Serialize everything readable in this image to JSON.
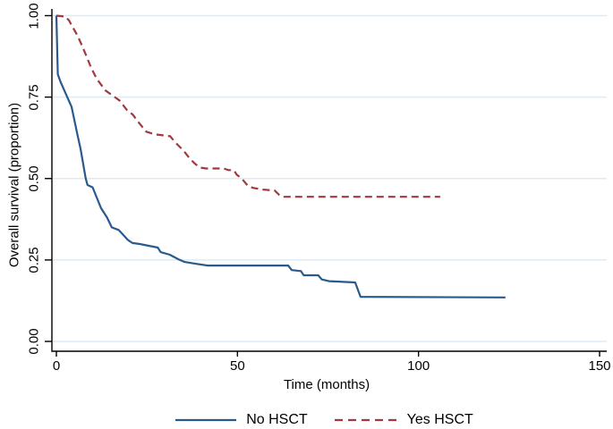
{
  "chart_data": {
    "type": "line",
    "title": "",
    "xlabel": "Time (months)",
    "ylabel": "Overall survival (proportion)",
    "xlim": [
      0,
      150
    ],
    "ylim": [
      0,
      1
    ],
    "xticks": [
      {
        "value": 0,
        "label": "0"
      },
      {
        "value": 50,
        "label": "50"
      },
      {
        "value": 100,
        "label": "100"
      },
      {
        "value": 150,
        "label": "150"
      }
    ],
    "yticks": [
      {
        "value": 0,
        "label": "0.00"
      },
      {
        "value": 0.25,
        "label": "0.25"
      },
      {
        "value": 0.5,
        "label": "0.50"
      },
      {
        "value": 0.75,
        "label": "0.75"
      },
      {
        "value": 1,
        "label": "1.00"
      }
    ],
    "grid": "horizontal-only",
    "legend_position": "bottom-center",
    "series": [
      {
        "name": "No HSCT",
        "color": "#2a5a8c",
        "dash": "solid",
        "points": [
          [
            0,
            1.0
          ],
          [
            0.4,
            0.82
          ],
          [
            1.2,
            0.795
          ],
          [
            4.2,
            0.72
          ],
          [
            5.9,
            0.63
          ],
          [
            6.7,
            0.59
          ],
          [
            8.1,
            0.5
          ],
          [
            8.6,
            0.48
          ],
          [
            10,
            0.473
          ],
          [
            12.3,
            0.41
          ],
          [
            14,
            0.38
          ],
          [
            15.3,
            0.35
          ],
          [
            17.2,
            0.342
          ],
          [
            19.7,
            0.312
          ],
          [
            21,
            0.302
          ],
          [
            23,
            0.299
          ],
          [
            28,
            0.288
          ],
          [
            28.8,
            0.274
          ],
          [
            31.3,
            0.266
          ],
          [
            33.7,
            0.252
          ],
          [
            35.4,
            0.244
          ],
          [
            38.6,
            0.238
          ],
          [
            41.8,
            0.233
          ],
          [
            64,
            0.233
          ],
          [
            65,
            0.219
          ],
          [
            67.5,
            0.216
          ],
          [
            68.3,
            0.203
          ],
          [
            72.3,
            0.203
          ],
          [
            73.3,
            0.19
          ],
          [
            75.3,
            0.185
          ],
          [
            82.5,
            0.181
          ],
          [
            84,
            0.137
          ],
          [
            124,
            0.135
          ]
        ]
      },
      {
        "name": "Yes HSCT",
        "color": "#a13a3e",
        "dash": "dashed",
        "points": [
          [
            0,
            1.0
          ],
          [
            2.5,
            0.997
          ],
          [
            3.5,
            0.985
          ],
          [
            5.9,
            0.937
          ],
          [
            7.2,
            0.905
          ],
          [
            8.4,
            0.873
          ],
          [
            9.6,
            0.84
          ],
          [
            11.2,
            0.805
          ],
          [
            13.6,
            0.77
          ],
          [
            17.4,
            0.74
          ],
          [
            19.5,
            0.71
          ],
          [
            21.1,
            0.696
          ],
          [
            22.8,
            0.671
          ],
          [
            24.8,
            0.644
          ],
          [
            27,
            0.636
          ],
          [
            31.4,
            0.63
          ],
          [
            33.1,
            0.608
          ],
          [
            35.1,
            0.586
          ],
          [
            36.8,
            0.562
          ],
          [
            38.3,
            0.545
          ],
          [
            39.6,
            0.534
          ],
          [
            41.3,
            0.531
          ],
          [
            46.2,
            0.531
          ],
          [
            47.5,
            0.526
          ],
          [
            49,
            0.526
          ],
          [
            49.8,
            0.512
          ],
          [
            51.2,
            0.5
          ],
          [
            52.9,
            0.477
          ],
          [
            54.4,
            0.471
          ],
          [
            57,
            0.466
          ],
          [
            60.3,
            0.463
          ],
          [
            61.5,
            0.45
          ],
          [
            62.5,
            0.444
          ],
          [
            106,
            0.444
          ]
        ]
      }
    ],
    "colors": {
      "axis": "#000000",
      "gridline": "#dfeaf3",
      "background": "#ffffff"
    }
  }
}
